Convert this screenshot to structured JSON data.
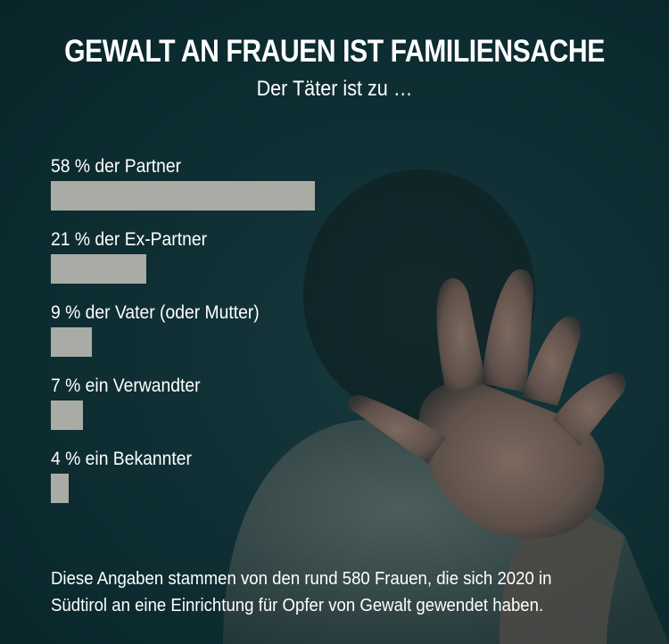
{
  "title": "GEWALT AN FRAUEN IST FAMILIENSACHE",
  "subtitle": "Der Täter ist zu …",
  "chart_data": {
    "type": "bar",
    "orientation": "horizontal",
    "unit": "%",
    "categories": [
      "58 % der Partner",
      "21 % der Ex-Partner",
      "9 % der Vater (oder Mutter)",
      "7 % ein Verwandter",
      "4 % ein Bekannter"
    ],
    "values": [
      58,
      21,
      9,
      7,
      4
    ],
    "bar_color": "#a8aca4"
  },
  "footnote_lines": [
    "Diese Angaben stammen von den rund 580 Frauen, die sich 2020 in",
    "Südtirol an eine Einrichtung für Opfer von Gewalt gewendet haben."
  ],
  "colors": {
    "background": "#0d2b30",
    "text": "#ffffff",
    "bar": "#a8aca4"
  }
}
